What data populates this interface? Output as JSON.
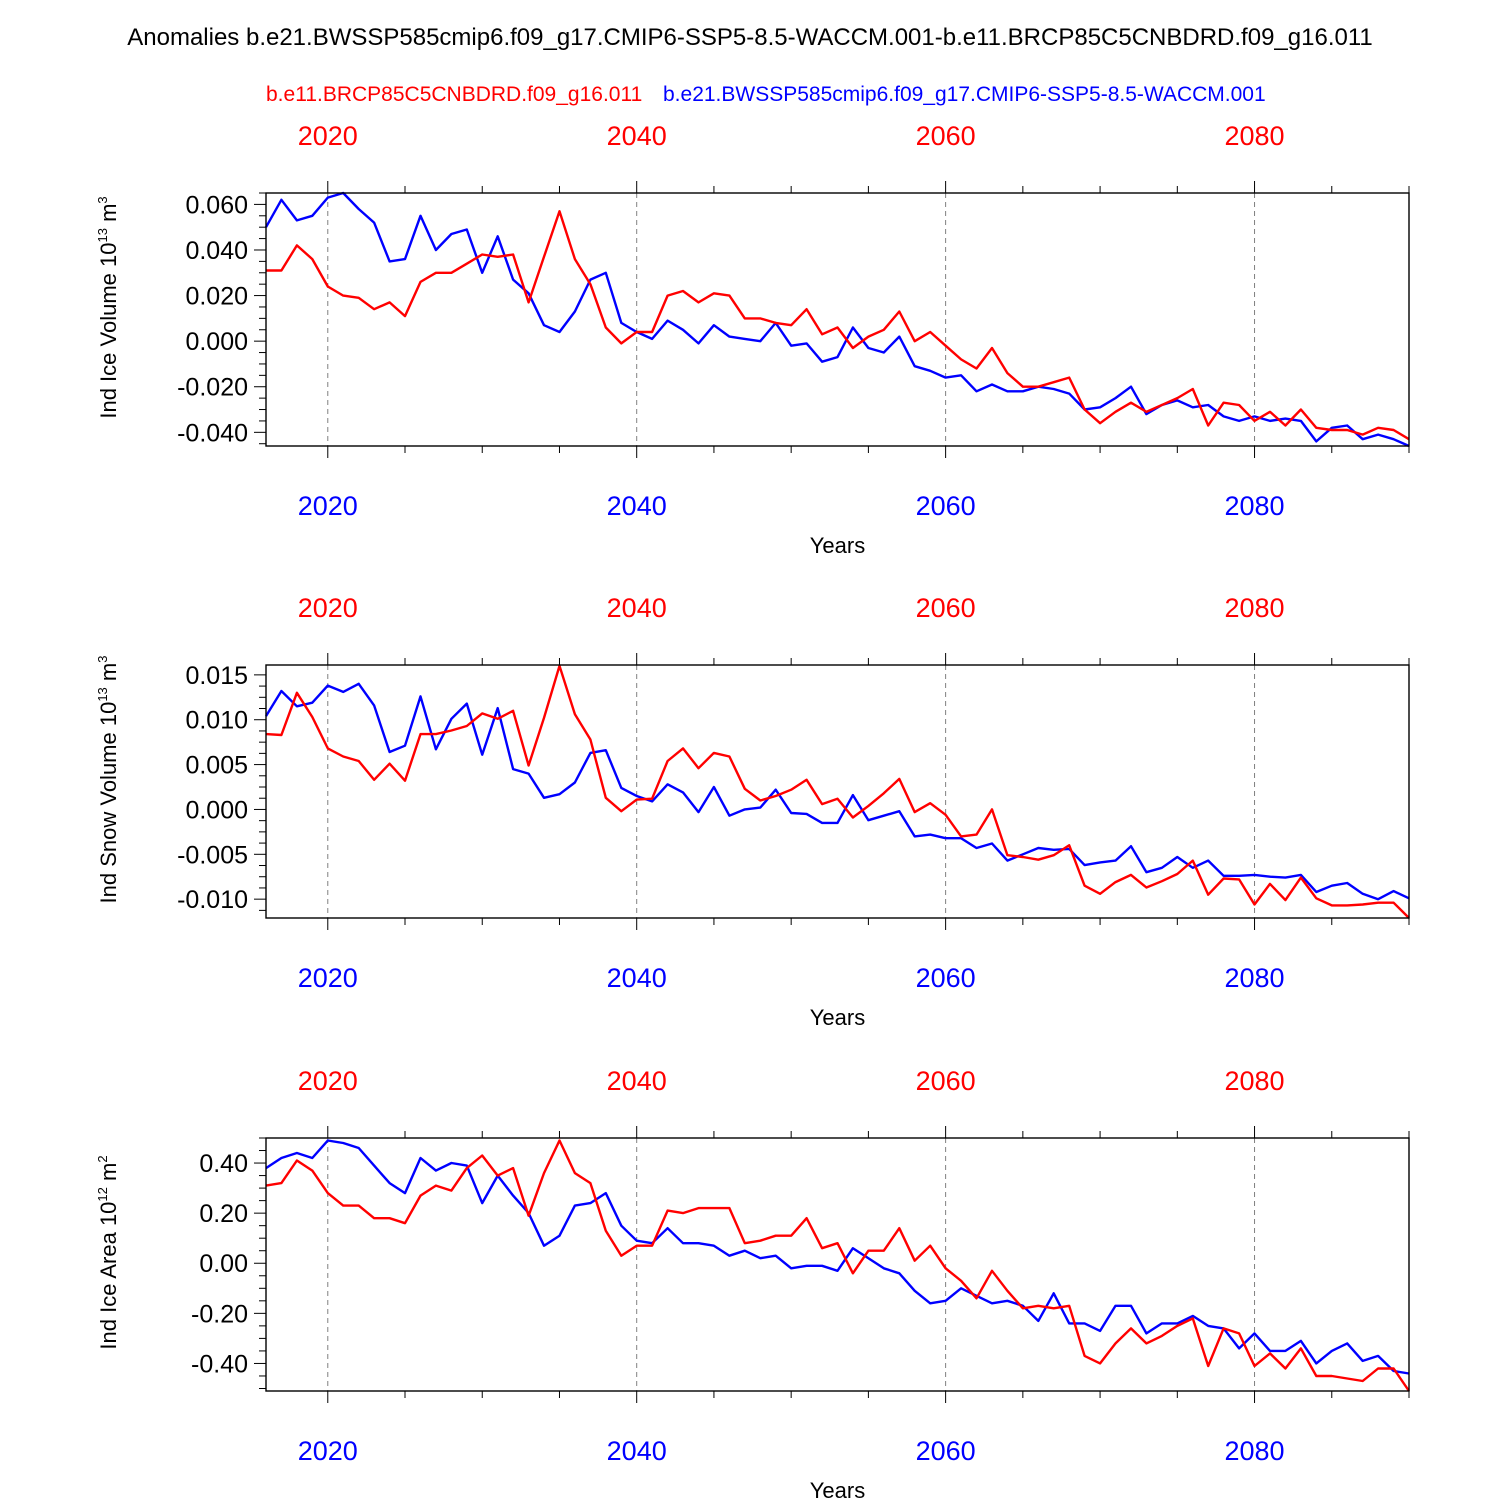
{
  "title": "Anomalies b.e21.BWSSP585cmip6.f09_g17.CMIP6-SSP5-8.5-WACCM.001-b.e11.BRCP85C5CNBDRD.f09_g16.011",
  "legend": {
    "red_label": "b.e11.BRCP85C5CNBDRD.f09_g16.011",
    "blue_label": "b.e21.BWSSP585cmip6.f09_g17.CMIP6-SSP5-8.5-WACCM.001"
  },
  "colors": {
    "red": "#ff0000",
    "blue": "#0000ff",
    "axis": "#000000",
    "grid": "#808080"
  },
  "chart_data": [
    {
      "type": "line",
      "ylabel": "Ind Ice Volume",
      "yunit": "10^13 m^3",
      "unit_exponent": "13",
      "unit_base": "m",
      "unit_power": "3",
      "xlabel": "Years",
      "xlim": [
        2016,
        2090
      ],
      "ylim": [
        -0.046,
        0.065
      ],
      "grid": "vertical dashed at major ticks",
      "top_tick_labels": [
        "2020",
        "2040",
        "2060",
        "2080"
      ],
      "bottom_tick_labels": [
        "2020",
        "2040",
        "2060",
        "2080"
      ],
      "ytick_labels": [
        "0.060",
        "0.040",
        "0.020",
        "0.000",
        "-0.020",
        "-0.040"
      ],
      "ytick_values": [
        0.06,
        0.04,
        0.02,
        0.0,
        -0.02,
        -0.04
      ],
      "series": [
        {
          "name": "b.e21.BWSSP585cmip6.f09_g17.CMIP6-SSP5-8.5-WACCM.001",
          "color": "blue",
          "x_start": 2016,
          "values": [
            0.05,
            0.062,
            0.053,
            0.055,
            0.063,
            0.065,
            0.058,
            0.052,
            0.035,
            0.036,
            0.055,
            0.04,
            0.047,
            0.049,
            0.03,
            0.046,
            0.027,
            0.021,
            0.007,
            0.004,
            0.013,
            0.027,
            0.03,
            0.008,
            0.004,
            0.001,
            0.009,
            0.005,
            -0.001,
            0.007,
            0.002,
            0.001,
            0.0,
            0.008,
            -0.002,
            -0.001,
            -0.009,
            -0.007,
            0.006,
            -0.003,
            -0.005,
            0.002,
            -0.011,
            -0.013,
            -0.016,
            -0.015,
            -0.022,
            -0.019,
            -0.022,
            -0.022,
            -0.02,
            -0.021,
            -0.023,
            -0.03,
            -0.029,
            -0.025,
            -0.02,
            -0.032,
            -0.028,
            -0.026,
            -0.029,
            -0.028,
            -0.033,
            -0.035,
            -0.033,
            -0.035,
            -0.034,
            -0.035,
            -0.044,
            -0.038,
            -0.037,
            -0.043,
            -0.041,
            -0.043,
            -0.046
          ]
        },
        {
          "name": "b.e11.BRCP85C5CNBDRD.f09_g16.011",
          "color": "red",
          "x_start": 2016,
          "values": [
            0.031,
            0.031,
            0.042,
            0.036,
            0.024,
            0.02,
            0.019,
            0.014,
            0.017,
            0.011,
            0.026,
            0.03,
            0.03,
            0.034,
            0.038,
            0.037,
            0.038,
            0.017,
            0.037,
            0.057,
            0.036,
            0.025,
            0.006,
            -0.001,
            0.004,
            0.004,
            0.02,
            0.022,
            0.017,
            0.021,
            0.02,
            0.01,
            0.01,
            0.008,
            0.007,
            0.014,
            0.003,
            0.006,
            -0.003,
            0.002,
            0.005,
            0.013,
            0.0,
            0.004,
            -0.002,
            -0.008,
            -0.012,
            -0.003,
            -0.014,
            -0.02,
            -0.02,
            -0.018,
            -0.016,
            -0.03,
            -0.036,
            -0.031,
            -0.027,
            -0.031,
            -0.028,
            -0.025,
            -0.021,
            -0.037,
            -0.027,
            -0.028,
            -0.035,
            -0.031,
            -0.037,
            -0.03,
            -0.038,
            -0.039,
            -0.039,
            -0.041,
            -0.038,
            -0.039,
            -0.043
          ]
        }
      ]
    },
    {
      "type": "line",
      "ylabel": "Ind Snow Volume",
      "yunit": "10^13 m^3",
      "unit_exponent": "13",
      "unit_base": "m",
      "unit_power": "3",
      "xlabel": "Years",
      "xlim": [
        2016,
        2090
      ],
      "ylim": [
        -0.0121,
        0.0161
      ],
      "grid": "vertical dashed at major ticks",
      "top_tick_labels": [
        "2020",
        "2040",
        "2060",
        "2080"
      ],
      "bottom_tick_labels": [
        "2020",
        "2040",
        "2060",
        "2080"
      ],
      "ytick_labels": [
        "0.015",
        "0.010",
        "0.005",
        "0.000",
        "-0.005",
        "-0.010"
      ],
      "ytick_values": [
        0.015,
        0.01,
        0.005,
        0.0,
        -0.005,
        -0.01
      ],
      "series": [
        {
          "name": "b.e21.BWSSP585cmip6.f09_g17.CMIP6-SSP5-8.5-WACCM.001",
          "color": "blue",
          "x_start": 2016,
          "values": [
            0.0104,
            0.0132,
            0.0115,
            0.0119,
            0.0138,
            0.0131,
            0.014,
            0.0116,
            0.0064,
            0.0071,
            0.0126,
            0.0067,
            0.0101,
            0.0118,
            0.0061,
            0.0113,
            0.0045,
            0.004,
            0.0013,
            0.0017,
            0.003,
            0.0063,
            0.0066,
            0.0024,
            0.0015,
            0.0009,
            0.0028,
            0.0019,
            -0.0003,
            0.0025,
            -0.0007,
            0.0,
            0.0002,
            0.0022,
            -0.0004,
            -0.0005,
            -0.0015,
            -0.0015,
            0.0016,
            -0.0012,
            -0.0007,
            -0.0002,
            -0.003,
            -0.0028,
            -0.0032,
            -0.0032,
            -0.0043,
            -0.0038,
            -0.0057,
            -0.005,
            -0.0043,
            -0.0045,
            -0.0044,
            -0.0062,
            -0.0059,
            -0.0057,
            -0.0041,
            -0.007,
            -0.0065,
            -0.0053,
            -0.0065,
            -0.0057,
            -0.0074,
            -0.0074,
            -0.0073,
            -0.0075,
            -0.0076,
            -0.0073,
            -0.0092,
            -0.0085,
            -0.0082,
            -0.0094,
            -0.01,
            -0.0091,
            -0.0099
          ]
        },
        {
          "name": "b.e11.BRCP85C5CNBDRD.f09_g16.011",
          "color": "red",
          "x_start": 2016,
          "values": [
            0.0084,
            0.0083,
            0.013,
            0.0103,
            0.0068,
            0.0059,
            0.0054,
            0.0033,
            0.0051,
            0.0032,
            0.0084,
            0.0084,
            0.0088,
            0.0093,
            0.0107,
            0.0101,
            0.011,
            0.0049,
            0.0102,
            0.016,
            0.0106,
            0.0078,
            0.0013,
            -0.0002,
            0.0011,
            0.0012,
            0.0054,
            0.0068,
            0.0046,
            0.0063,
            0.0059,
            0.0023,
            0.001,
            0.0015,
            0.0022,
            0.0033,
            0.0006,
            0.0012,
            -0.0009,
            0.0004,
            0.0018,
            0.0034,
            -0.0003,
            0.0007,
            -0.0006,
            -0.003,
            -0.0028,
            0.0,
            -0.0051,
            -0.0053,
            -0.0056,
            -0.0051,
            -0.004,
            -0.0085,
            -0.0094,
            -0.0081,
            -0.0073,
            -0.0087,
            -0.008,
            -0.0072,
            -0.0057,
            -0.0095,
            -0.0077,
            -0.0078,
            -0.0106,
            -0.0083,
            -0.0101,
            -0.0076,
            -0.0099,
            -0.0107,
            -0.0107,
            -0.0106,
            -0.0104,
            -0.0104,
            -0.0121
          ]
        }
      ]
    },
    {
      "type": "line",
      "ylabel": "Ind Ice Area",
      "yunit": "10^12 m^2",
      "unit_exponent": "12",
      "unit_base": "m",
      "unit_power": "2",
      "xlabel": "Years",
      "xlim": [
        2016,
        2090
      ],
      "ylim": [
        -0.51,
        0.5
      ],
      "grid": "vertical dashed at major ticks",
      "top_tick_labels": [
        "2020",
        "2040",
        "2060",
        "2080"
      ],
      "bottom_tick_labels": [
        "2020",
        "2040",
        "2060",
        "2080"
      ],
      "ytick_labels": [
        "0.40",
        "0.20",
        "0.00",
        "-0.20",
        "-0.40"
      ],
      "ytick_values": [
        0.4,
        0.2,
        0.0,
        -0.2,
        -0.4
      ],
      "series": [
        {
          "name": "b.e21.BWSSP585cmip6.f09_g17.CMIP6-SSP5-8.5-WACCM.001",
          "color": "blue",
          "x_start": 2016,
          "values": [
            0.38,
            0.42,
            0.44,
            0.42,
            0.49,
            0.48,
            0.46,
            0.39,
            0.32,
            0.28,
            0.42,
            0.37,
            0.4,
            0.39,
            0.24,
            0.35,
            0.27,
            0.2,
            0.07,
            0.11,
            0.23,
            0.24,
            0.28,
            0.15,
            0.09,
            0.08,
            0.14,
            0.08,
            0.08,
            0.07,
            0.03,
            0.05,
            0.02,
            0.03,
            -0.02,
            -0.01,
            -0.01,
            -0.03,
            0.06,
            0.02,
            -0.02,
            -0.04,
            -0.11,
            -0.16,
            -0.15,
            -0.1,
            -0.13,
            -0.16,
            -0.15,
            -0.17,
            -0.23,
            -0.12,
            -0.24,
            -0.24,
            -0.27,
            -0.17,
            -0.17,
            -0.28,
            -0.24,
            -0.24,
            -0.21,
            -0.25,
            -0.26,
            -0.34,
            -0.28,
            -0.35,
            -0.35,
            -0.31,
            -0.4,
            -0.35,
            -0.32,
            -0.39,
            -0.37,
            -0.43,
            -0.44
          ]
        },
        {
          "name": "b.e11.BRCP85C5CNBDRD.f09_g16.011",
          "color": "red",
          "x_start": 2016,
          "values": [
            0.31,
            0.32,
            0.41,
            0.37,
            0.28,
            0.23,
            0.23,
            0.18,
            0.18,
            0.16,
            0.27,
            0.31,
            0.29,
            0.38,
            0.43,
            0.35,
            0.38,
            0.19,
            0.36,
            0.49,
            0.36,
            0.32,
            0.13,
            0.03,
            0.07,
            0.07,
            0.21,
            0.2,
            0.22,
            0.22,
            0.22,
            0.08,
            0.09,
            0.11,
            0.11,
            0.18,
            0.06,
            0.08,
            -0.04,
            0.05,
            0.05,
            0.14,
            0.01,
            0.07,
            -0.02,
            -0.07,
            -0.14,
            -0.03,
            -0.11,
            -0.18,
            -0.17,
            -0.18,
            -0.17,
            -0.37,
            -0.4,
            -0.32,
            -0.26,
            -0.32,
            -0.29,
            -0.25,
            -0.22,
            -0.41,
            -0.26,
            -0.28,
            -0.41,
            -0.36,
            -0.42,
            -0.34,
            -0.45,
            -0.45,
            -0.46,
            -0.47,
            -0.42,
            -0.42,
            -0.51
          ]
        }
      ]
    }
  ]
}
